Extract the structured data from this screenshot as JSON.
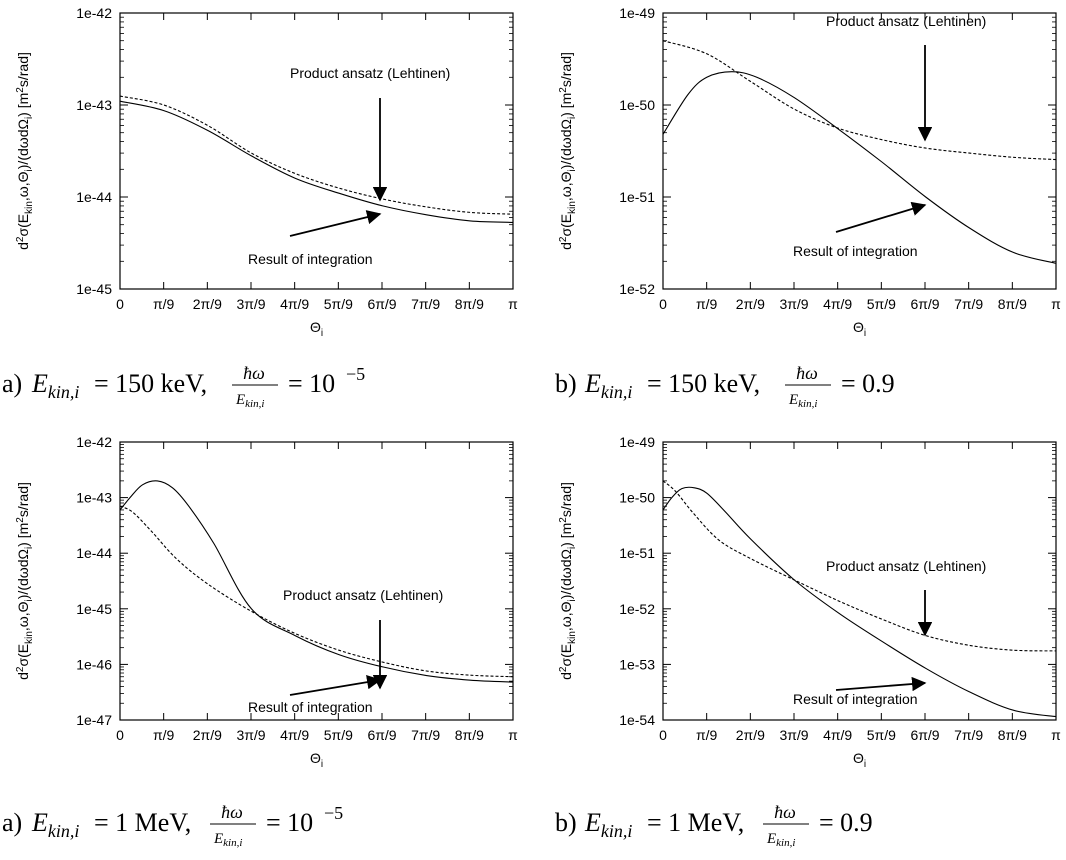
{
  "chart_data": [
    {
      "type": "line",
      "panel": "top-left",
      "ylabel": "d²σ(Ekin,ω,Θi)/(dωdΩi) [m²s/rad]",
      "xlabel": "Θi",
      "xlim": [
        0,
        3.14159
      ],
      "ylim": [
        1e-45,
        1e-42
      ],
      "yscale": "log",
      "x_tick_labels": [
        "0",
        "π/9",
        "2π/9",
        "3π/9",
        "4π/9",
        "5π/9",
        "6π/9",
        "7π/9",
        "8π/9",
        "π"
      ],
      "y_tick_labels": [
        "1e-45",
        "1e-44",
        "1e-43",
        "1e-42"
      ],
      "annotations": [
        {
          "text": "Product ansatz (Lehtinen)",
          "at": [
            2.094,
            9e-45
          ]
        },
        {
          "text": "Result of integration",
          "at": [
            2.094,
            6.2e-45
          ]
        }
      ],
      "caption": {
        "prefix": "a)",
        "E": "150 keV",
        "ratio": "10",
        "exp": "−5"
      },
      "series": [
        {
          "name": "Product ansatz (Lehtinen)",
          "style": "dashed",
          "x": [
            0,
            0.35,
            0.7,
            1.05,
            1.4,
            1.75,
            2.1,
            2.45,
            2.8,
            3.14159
          ],
          "y": [
            1.25e-43,
            1e-43,
            6e-44,
            3e-44,
            1.8e-44,
            1.25e-44,
            9.5e-45,
            7.8e-45,
            6.8e-45,
            6.5e-45
          ]
        },
        {
          "name": "Result of integration",
          "style": "solid",
          "x": [
            0,
            0.35,
            0.7,
            1.05,
            1.4,
            1.75,
            2.1,
            2.45,
            2.8,
            3.14159
          ],
          "y": [
            1.1e-43,
            8.7e-44,
            5.3e-44,
            2.8e-44,
            1.6e-44,
            1.1e-44,
            8e-45,
            6.4e-45,
            5.5e-45,
            5.3e-45
          ]
        }
      ]
    },
    {
      "type": "line",
      "panel": "top-right",
      "ylabel": "d²σ(Ekin,ω,Θi)/(dωdΩi) [m²s/rad]",
      "xlabel": "Θi",
      "xlim": [
        0,
        3.14159
      ],
      "ylim": [
        1e-52,
        1e-49
      ],
      "yscale": "log",
      "x_tick_labels": [
        "0",
        "π/9",
        "2π/9",
        "3π/9",
        "4π/9",
        "5π/9",
        "6π/9",
        "7π/9",
        "8π/9",
        "π"
      ],
      "y_tick_labels": [
        "1e-52",
        "1e-51",
        "1e-50",
        "1e-49"
      ],
      "annotations": [
        {
          "text": "Product ansatz (Lehtinen)",
          "at": [
            2.094,
            3.6e-51
          ]
        },
        {
          "text": "Result of integration",
          "at": [
            2.094,
            1.1e-51
          ]
        }
      ],
      "caption": {
        "prefix": "b)",
        "E": "150 keV",
        "ratio": "0.9",
        "exp": ""
      },
      "series": [
        {
          "name": "Product ansatz (Lehtinen)",
          "style": "dashed",
          "x": [
            0,
            0.35,
            0.7,
            1.05,
            1.4,
            1.75,
            2.1,
            2.45,
            2.8,
            3.14159
          ],
          "y": [
            5e-50,
            3.6e-50,
            1.8e-50,
            9e-51,
            5.6e-51,
            4.2e-51,
            3.4e-51,
            3e-51,
            2.7e-51,
            2.55e-51
          ]
        },
        {
          "name": "Result of integration",
          "style": "solid",
          "x": [
            0,
            0.2,
            0.35,
            0.55,
            0.75,
            1.05,
            1.4,
            1.75,
            2.1,
            2.45,
            2.8,
            3.14159
          ],
          "y": [
            4.8e-51,
            1.3e-50,
            2e-50,
            2.3e-50,
            2e-50,
            1.2e-50,
            5.5e-51,
            2.4e-51,
            1e-51,
            4.6e-52,
            2.5e-52,
            1.9e-52
          ]
        }
      ]
    },
    {
      "type": "line",
      "panel": "bottom-left",
      "ylabel": "d²σ(Ekin,ω,Θi)/(dωdΩi) [m²s/rad]",
      "xlabel": "Θi",
      "xlim": [
        0,
        3.14159
      ],
      "ylim": [
        1e-47,
        1e-42
      ],
      "yscale": "log",
      "x_tick_labels": [
        "0",
        "π/9",
        "2π/9",
        "3π/9",
        "4π/9",
        "5π/9",
        "6π/9",
        "7π/9",
        "8π/9",
        "π"
      ],
      "y_tick_labels": [
        "1e-47",
        "1e-46",
        "1e-45",
        "1e-44",
        "1e-43",
        "1e-42"
      ],
      "annotations": [
        {
          "text": "Product ansatz (Lehtinen)",
          "at": [
            2.094,
            1.2e-46
          ]
        },
        {
          "text": "Result of integration",
          "at": [
            2.094,
            6.5e-47
          ]
        }
      ],
      "caption": {
        "prefix": "a)",
        "E": "1 MeV",
        "ratio": "10",
        "exp": "−5"
      },
      "series": [
        {
          "name": "Product ansatz (Lehtinen)",
          "style": "dashed",
          "x": [
            0,
            0.1,
            0.25,
            0.45,
            0.7,
            1.05,
            1.4,
            1.75,
            2.1,
            2.45,
            2.8,
            3.14159
          ],
          "y": [
            7e-44,
            5.5e-44,
            2.5e-44,
            8e-45,
            2.8e-45,
            9e-46,
            3.6e-46,
            1.8e-46,
            1.1e-46,
            7.6e-47,
            6.4e-47,
            6e-47
          ]
        },
        {
          "name": "Result of integration",
          "style": "solid",
          "x": [
            0,
            0.08,
            0.18,
            0.3,
            0.42,
            0.55,
            0.75,
            1.05,
            1.4,
            1.75,
            2.1,
            2.45,
            2.8,
            3.14159
          ],
          "y": [
            6e-44,
            1e-43,
            1.7e-43,
            2e-43,
            1.5e-43,
            7e-44,
            1.5e-44,
            1e-45,
            3.3e-46,
            1.5e-46,
            9e-47,
            6.3e-47,
            5.2e-47,
            4.8e-47
          ]
        }
      ]
    },
    {
      "type": "line",
      "panel": "bottom-right",
      "ylabel": "d²σ(Ekin,ω,Θi)/(dωdΩi) [m²s/rad]",
      "xlabel": "Θi",
      "xlim": [
        0,
        3.14159
      ],
      "ylim": [
        1e-54,
        1e-49
      ],
      "yscale": "log",
      "x_tick_labels": [
        "0",
        "π/9",
        "2π/9",
        "3π/9",
        "4π/9",
        "5π/9",
        "6π/9",
        "7π/9",
        "8π/9",
        "π"
      ],
      "y_tick_labels": [
        "1e-54",
        "1e-53",
        "1e-52",
        "1e-51",
        "1e-50",
        "1e-49"
      ],
      "annotations": [
        {
          "text": "Product ansatz (Lehtinen)",
          "at": [
            2.094,
            3.2e-53
          ]
        },
        {
          "text": "Result of integration",
          "at": [
            2.094,
            6e-54
          ]
        }
      ],
      "caption": {
        "prefix": "b)",
        "E": "1 MeV",
        "ratio": "0.9",
        "exp": ""
      },
      "series": [
        {
          "name": "Product ansatz (Lehtinen)",
          "style": "dashed",
          "x": [
            0,
            0.1,
            0.25,
            0.45,
            0.7,
            1.05,
            1.4,
            1.75,
            2.1,
            2.45,
            2.8,
            3.14159
          ],
          "y": [
            2e-50,
            1.3e-50,
            5e-51,
            1.7e-51,
            8e-52,
            3.3e-52,
            1.4e-52,
            6.5e-53,
            3.3e-53,
            2.2e-53,
            1.8e-53,
            1.75e-53
          ]
        },
        {
          "name": "Result of integration",
          "style": "solid",
          "x": [
            0,
            0.07,
            0.15,
            0.25,
            0.35,
            0.5,
            0.7,
            1.05,
            1.4,
            1.75,
            2.1,
            2.45,
            2.8,
            3.14159
          ],
          "y": [
            6e-51,
            1e-50,
            1.45e-50,
            1.5e-50,
            1.2e-50,
            5.5e-51,
            1.8e-51,
            3.3e-52,
            8.5e-53,
            2.6e-53,
            8.5e-54,
            3.2e-54,
            1.5e-54,
            1.15e-54
          ]
        }
      ]
    }
  ]
}
